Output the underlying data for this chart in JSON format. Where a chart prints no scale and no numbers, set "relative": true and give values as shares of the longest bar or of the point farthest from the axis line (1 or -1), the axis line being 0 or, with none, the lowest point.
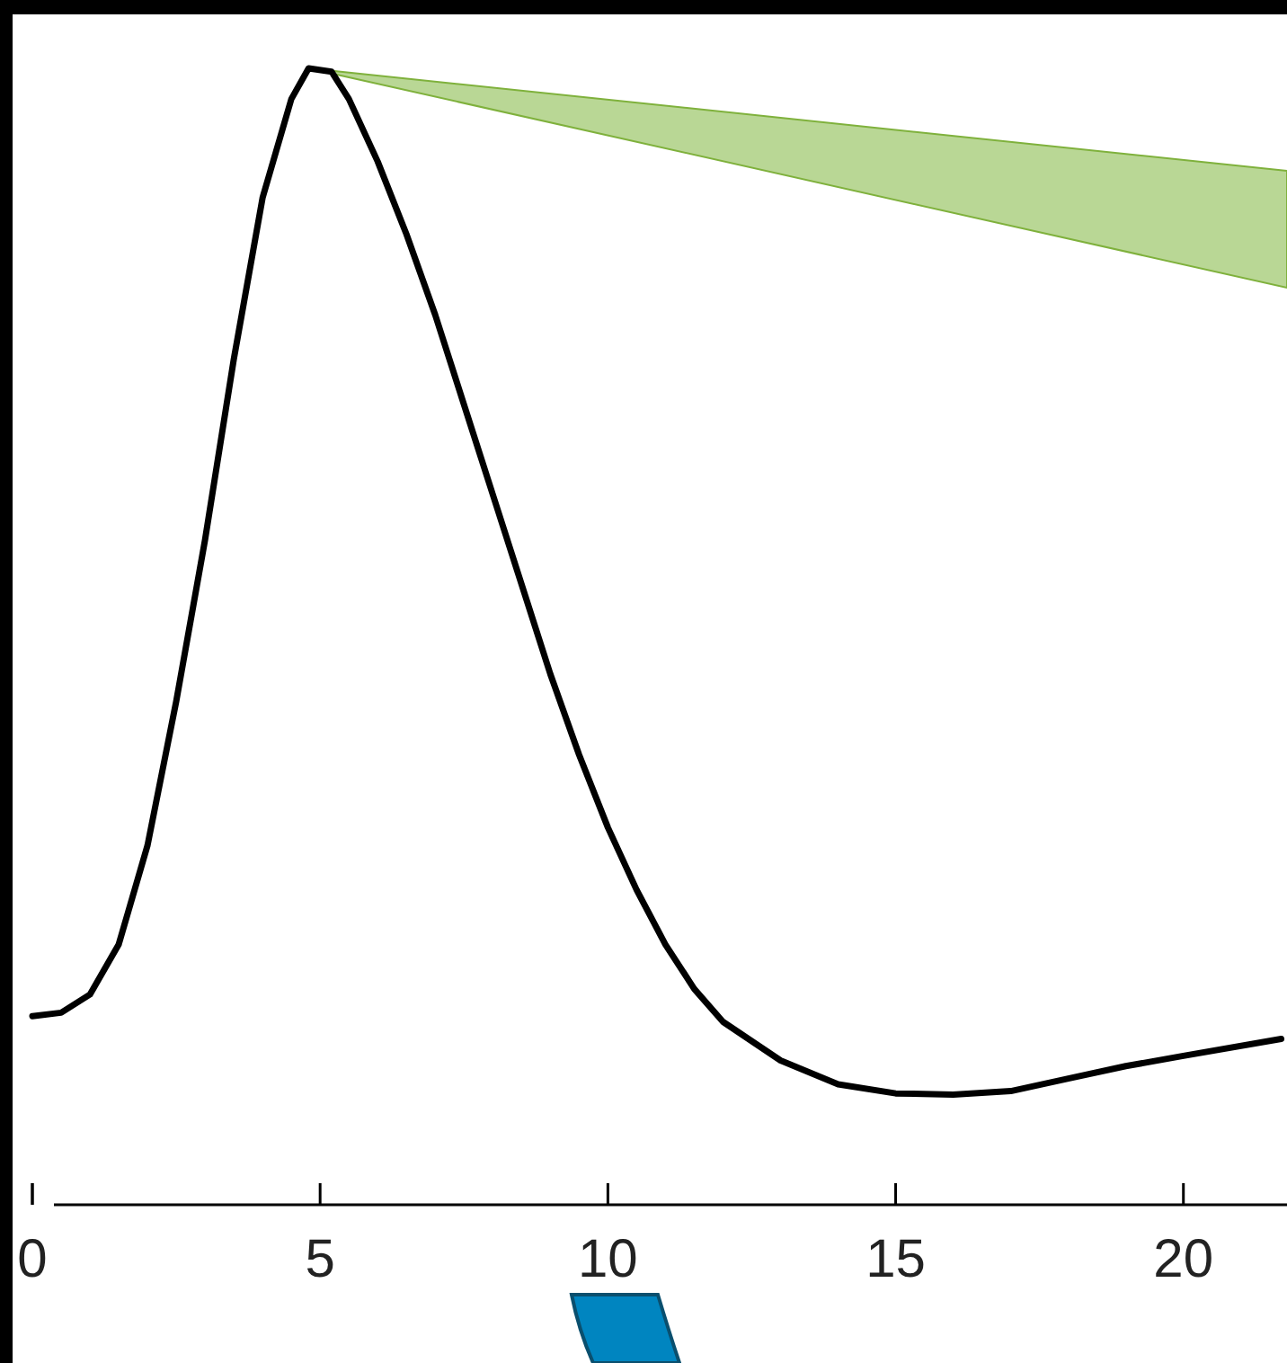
{
  "chart_data": {
    "type": "line",
    "relative": true,
    "tick_labels": "x",
    "xlim": [
      0,
      21.8
    ],
    "xticks": [
      0,
      5,
      10,
      15,
      20
    ],
    "x": [
      0,
      0.5,
      1,
      1.5,
      2,
      2.5,
      3,
      3.5,
      4,
      4.5,
      4.8,
      5.2,
      5.5,
      6,
      6.5,
      7,
      7.5,
      8,
      8.5,
      9,
      9.5,
      10,
      10.5,
      11,
      11.5,
      12,
      13,
      14,
      15,
      16,
      17,
      18,
      19,
      20,
      21.7
    ],
    "series": [
      {
        "color": "#000000",
        "values": [
          0.166,
          0.169,
          0.185,
          0.229,
          0.316,
          0.443,
          0.585,
          0.744,
          0.886,
          0.973,
          1,
          0.997,
          0.973,
          0.918,
          0.854,
          0.783,
          0.704,
          0.625,
          0.546,
          0.467,
          0.396,
          0.332,
          0.277,
          0.229,
          0.19,
          0.161,
          0.127,
          0.106,
          0.098,
          0.097,
          0.1,
          0.111,
          0.122,
          0.131,
          0.146
        ]
      }
    ]
  }
}
